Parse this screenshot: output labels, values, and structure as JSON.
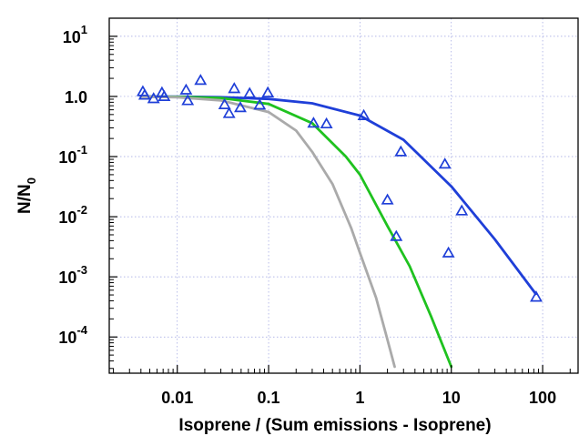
{
  "chart_data": {
    "type": "scatter",
    "title": "",
    "xlabel": "Isoprene / (Sum emissions - Isoprene)",
    "ylabel": {
      "base": "N/N",
      "subscript": "0"
    },
    "x_scale": "log",
    "y_scale": "log",
    "xlim": [
      0.0018,
      250
    ],
    "ylim": [
      2.5e-05,
      20
    ],
    "grid": true,
    "x_ticks": [
      {
        "value": 0.01,
        "label": "0.01"
      },
      {
        "value": 0.1,
        "label": "0.1"
      },
      {
        "value": 1,
        "label": "1"
      },
      {
        "value": 10,
        "label": "10"
      },
      {
        "value": 100,
        "label": "100"
      }
    ],
    "y_ticks": [
      {
        "value": 10,
        "base": "10",
        "exp": "1"
      },
      {
        "value": 1,
        "base": "1.0",
        "exp": ""
      },
      {
        "value": 0.1,
        "base": "10",
        "exp": "-1"
      },
      {
        "value": 0.01,
        "base": "10",
        "exp": "-2"
      },
      {
        "value": 0.001,
        "base": "10",
        "exp": "-3"
      },
      {
        "value": 0.0001,
        "base": "10",
        "exp": "-4"
      }
    ],
    "scatter": {
      "marker": "open-triangle",
      "color": "#1f3fd8",
      "points": [
        [
          0.0042,
          1.2
        ],
        [
          0.0044,
          1.05
        ],
        [
          0.0055,
          0.92
        ],
        [
          0.0068,
          1.15
        ],
        [
          0.0072,
          1.0
        ],
        [
          0.0125,
          1.28
        ],
        [
          0.013,
          0.85
        ],
        [
          0.018,
          1.85
        ],
        [
          0.033,
          0.73
        ],
        [
          0.037,
          0.52
        ],
        [
          0.042,
          1.35
        ],
        [
          0.049,
          0.65
        ],
        [
          0.062,
          1.12
        ],
        [
          0.08,
          0.72
        ],
        [
          0.098,
          1.15
        ],
        [
          0.31,
          0.36
        ],
        [
          0.43,
          0.35
        ],
        [
          1.1,
          0.48
        ],
        [
          2.0,
          0.019
        ],
        [
          2.5,
          0.0047
        ],
        [
          2.8,
          0.12
        ],
        [
          8.5,
          0.075
        ],
        [
          9.3,
          0.0025
        ],
        [
          13.0,
          0.0125
        ],
        [
          85,
          0.00046
        ]
      ]
    },
    "series": [
      {
        "color": "#1f3fd8",
        "points": [
          [
            0.004,
            1.0
          ],
          [
            0.01,
            0.99
          ],
          [
            0.03,
            0.97
          ],
          [
            0.1,
            0.91
          ],
          [
            0.3,
            0.77
          ],
          [
            1,
            0.48
          ],
          [
            3,
            0.19
          ],
          [
            10,
            0.032
          ],
          [
            30,
            0.0042
          ],
          [
            84,
            0.00052
          ]
        ]
      },
      {
        "color": "#1fc21f",
        "points": [
          [
            0.004,
            0.995
          ],
          [
            0.01,
            0.985
          ],
          [
            0.03,
            0.94
          ],
          [
            0.1,
            0.75
          ],
          [
            0.3,
            0.36
          ],
          [
            0.7,
            0.1
          ],
          [
            1,
            0.05
          ],
          [
            2,
            0.007
          ],
          [
            3.5,
            0.0015
          ],
          [
            6,
            0.00022
          ],
          [
            10,
            3.2e-05
          ]
        ]
      },
      {
        "color": "#aaaaaa",
        "points": [
          [
            0.004,
            0.99
          ],
          [
            0.01,
            0.97
          ],
          [
            0.03,
            0.86
          ],
          [
            0.1,
            0.55
          ],
          [
            0.2,
            0.27
          ],
          [
            0.3,
            0.12
          ],
          [
            0.5,
            0.035
          ],
          [
            0.8,
            0.0065
          ],
          [
            1,
            0.0025
          ],
          [
            1.5,
            0.00045
          ],
          [
            2.0,
            9e-05
          ],
          [
            2.4,
            3.2e-05
          ]
        ]
      }
    ]
  }
}
